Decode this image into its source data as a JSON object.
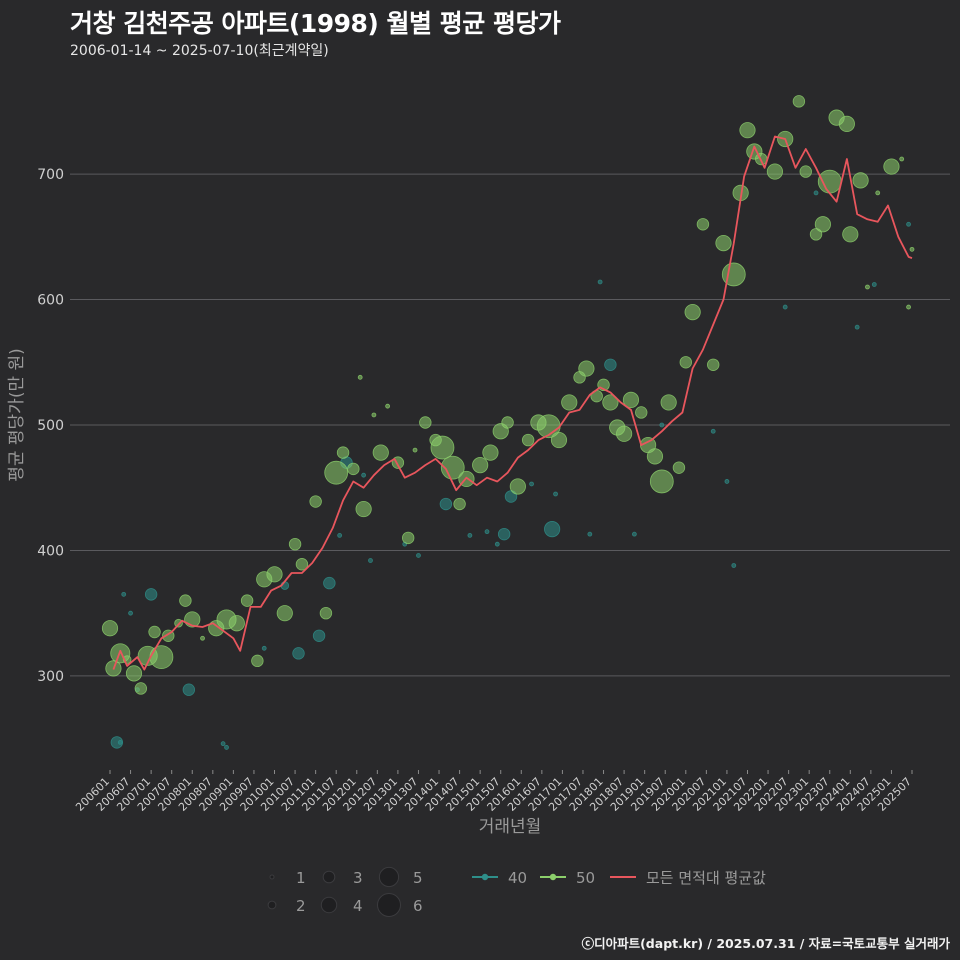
{
  "title": "거창 김천주공 아파트(1998) 월별 평균 평당가",
  "subtitle": "2006-01-14 ~ 2025-07-10(최근계약일)",
  "caption": "ⓒ디아파트(dapt.kr) / 2025.07.31 / 자료=국토교통부 실거래가",
  "colors": {
    "background": "#29292b",
    "grid": "#5a5a5e",
    "area_40": "#2e8f8a",
    "area_50": "#8ccf6b",
    "average_line": "#e8565d",
    "text": "#cfcfcf"
  },
  "chart_data": {
    "type": "scatter",
    "title": "거창 김천주공 아파트(1998) 월별 평균 평당가",
    "subtitle": "2006-01-14 ~ 2025-07-10(최근계약일)",
    "xlabel": "거래년월",
    "ylabel": "평균 평당가(만 원)",
    "ylim": [
      225,
      775
    ],
    "y_ticks": [
      300,
      400,
      500,
      600,
      700
    ],
    "x_ticks": [
      "200601",
      "200607",
      "200701",
      "200707",
      "200801",
      "200807",
      "200901",
      "200907",
      "201001",
      "201007",
      "201101",
      "201107",
      "201201",
      "201207",
      "201301",
      "201307",
      "201401",
      "201407",
      "201501",
      "201507",
      "201601",
      "201607",
      "201701",
      "201707",
      "201801",
      "201807",
      "201901",
      "201907",
      "202001",
      "202007",
      "202101",
      "202107",
      "202201",
      "202207",
      "202301",
      "202307",
      "202401",
      "202407",
      "202501",
      "202507"
    ],
    "grid": "horizontal",
    "size_legend": {
      "title": "",
      "values": [
        1,
        2,
        3,
        4,
        5,
        6
      ]
    },
    "series_legend": [
      "40",
      "50",
      "모든 면적대 평균값"
    ],
    "series": [
      {
        "name": "40",
        "points": [
          [
            "2006-03",
            247,
            3
          ],
          [
            "2006-04",
            247,
            1
          ],
          [
            "2006-05",
            365,
            1
          ],
          [
            "2006-07",
            350,
            1
          ],
          [
            "2006-09",
            289,
            1
          ],
          [
            "2007-01",
            365,
            3
          ],
          [
            "2007-12",
            289,
            3
          ],
          [
            "2008-10",
            246,
            1
          ],
          [
            "2008-11",
            243,
            1
          ],
          [
            "2009-10",
            322,
            1
          ],
          [
            "2010-08",
            318,
            3
          ],
          [
            "2010-04",
            372,
            2
          ],
          [
            "2011-02",
            332,
            3
          ],
          [
            "2011-05",
            374,
            3
          ],
          [
            "2011-08",
            412,
            1
          ],
          [
            "2011-10",
            470,
            3
          ],
          [
            "2012-05",
            392,
            1
          ],
          [
            "2012-03",
            460,
            1
          ],
          [
            "2013-03",
            405,
            1
          ],
          [
            "2013-07",
            396,
            1
          ],
          [
            "2014-03",
            437,
            3
          ],
          [
            "2014-10",
            412,
            1
          ],
          [
            "2015-03",
            415,
            1
          ],
          [
            "2015-06",
            405,
            1
          ],
          [
            "2015-08",
            413,
            3
          ],
          [
            "2015-10",
            443,
            3
          ],
          [
            "2016-04",
            453,
            1
          ],
          [
            "2016-10",
            417,
            4
          ],
          [
            "2016-11",
            445,
            1
          ],
          [
            "2017-09",
            413,
            1
          ],
          [
            "2017-12",
            614,
            1
          ],
          [
            "2018-03",
            548,
            3
          ],
          [
            "2018-10",
            413,
            1
          ],
          [
            "2019-06",
            500,
            1
          ],
          [
            "2020-09",
            495,
            1
          ],
          [
            "2021-03",
            388,
            1
          ],
          [
            "2021-01",
            455,
            1
          ],
          [
            "2022-06",
            594,
            1
          ],
          [
            "2023-03",
            685,
            1
          ],
          [
            "2024-03",
            578,
            1
          ],
          [
            "2024-08",
            612,
            1
          ],
          [
            "2025-06",
            660,
            1
          ]
        ]
      },
      {
        "name": "50",
        "points": [
          [
            "2006-01",
            338,
            4
          ],
          [
            "2006-02",
            306,
            4
          ],
          [
            "2006-04",
            318,
            5
          ],
          [
            "2006-06",
            313,
            2
          ],
          [
            "2006-08",
            302,
            4
          ],
          [
            "2006-10",
            290,
            3
          ],
          [
            "2006-12",
            316,
            5
          ],
          [
            "2007-02",
            335,
            3
          ],
          [
            "2007-04",
            315,
            6
          ],
          [
            "2007-06",
            332,
            3
          ],
          [
            "2007-09",
            342,
            2
          ],
          [
            "2007-11",
            360,
            3
          ],
          [
            "2008-01",
            345,
            4
          ],
          [
            "2008-04",
            330,
            1
          ],
          [
            "2008-08",
            338,
            4
          ],
          [
            "2008-11",
            345,
            5
          ],
          [
            "2009-02",
            342,
            4
          ],
          [
            "2009-05",
            360,
            3
          ],
          [
            "2009-08",
            312,
            3
          ],
          [
            "2009-10",
            377,
            4
          ],
          [
            "2010-01",
            381,
            4
          ],
          [
            "2010-04",
            350,
            4
          ],
          [
            "2010-07",
            405,
            3
          ],
          [
            "2010-09",
            389,
            3
          ],
          [
            "2011-01",
            439,
            3
          ],
          [
            "2011-04",
            350,
            3
          ],
          [
            "2011-07",
            462,
            6
          ],
          [
            "2011-09",
            478,
            3
          ],
          [
            "2011-12",
            465,
            3
          ],
          [
            "2012-02",
            538,
            1
          ],
          [
            "2012-03",
            433,
            4
          ],
          [
            "2012-06",
            508,
            1
          ],
          [
            "2012-08",
            478,
            4
          ],
          [
            "2012-10",
            515,
            1
          ],
          [
            "2013-01",
            470,
            3
          ],
          [
            "2013-04",
            410,
            3
          ],
          [
            "2013-06",
            480,
            1
          ],
          [
            "2013-09",
            502,
            3
          ],
          [
            "2013-12",
            488,
            3
          ],
          [
            "2014-02",
            482,
            6
          ],
          [
            "2014-05",
            466,
            6
          ],
          [
            "2014-07",
            437,
            3
          ],
          [
            "2014-09",
            457,
            4
          ],
          [
            "2015-01",
            468,
            4
          ],
          [
            "2015-04",
            478,
            4
          ],
          [
            "2015-07",
            495,
            4
          ],
          [
            "2015-09",
            502,
            3
          ],
          [
            "2015-12",
            451,
            4
          ],
          [
            "2016-03",
            488,
            3
          ],
          [
            "2016-06",
            502,
            4
          ],
          [
            "2016-09",
            499,
            6
          ],
          [
            "2016-12",
            488,
            4
          ],
          [
            "2017-03",
            518,
            4
          ],
          [
            "2017-06",
            538,
            3
          ],
          [
            "2017-08",
            545,
            4
          ],
          [
            "2017-11",
            523,
            3
          ],
          [
            "2018-01",
            532,
            3
          ],
          [
            "2018-03",
            518,
            4
          ],
          [
            "2018-05",
            498,
            4
          ],
          [
            "2018-07",
            493,
            4
          ],
          [
            "2018-09",
            520,
            4
          ],
          [
            "2018-12",
            510,
            3
          ],
          [
            "2019-02",
            484,
            4
          ],
          [
            "2019-04",
            475,
            4
          ],
          [
            "2019-06",
            455,
            6
          ],
          [
            "2019-08",
            518,
            4
          ],
          [
            "2019-11",
            466,
            3
          ],
          [
            "2020-01",
            550,
            3
          ],
          [
            "2020-03",
            590,
            4
          ],
          [
            "2020-06",
            660,
            3
          ],
          [
            "2020-09",
            548,
            3
          ],
          [
            "2020-12",
            645,
            4
          ],
          [
            "2021-03",
            620,
            6
          ],
          [
            "2021-05",
            685,
            4
          ],
          [
            "2021-07",
            735,
            4
          ],
          [
            "2021-09",
            718,
            4
          ],
          [
            "2021-11",
            712,
            3
          ],
          [
            "2022-03",
            702,
            4
          ],
          [
            "2022-06",
            728,
            4
          ],
          [
            "2022-10",
            758,
            3
          ],
          [
            "2022-12",
            702,
            3
          ],
          [
            "2023-03",
            652,
            3
          ],
          [
            "2023-05",
            660,
            4
          ],
          [
            "2023-07",
            694,
            6
          ],
          [
            "2023-09",
            745,
            4
          ],
          [
            "2023-12",
            740,
            4
          ],
          [
            "2024-01",
            652,
            4
          ],
          [
            "2024-04",
            695,
            4
          ],
          [
            "2024-06",
            610,
            1
          ],
          [
            "2024-09",
            685,
            1
          ],
          [
            "2025-01",
            706,
            4
          ],
          [
            "2025-04",
            712,
            1
          ],
          [
            "2025-06",
            594,
            1
          ],
          [
            "2025-07",
            640,
            1
          ]
        ]
      },
      {
        "name": "모든 면적대 평균값",
        "values": [
          [
            "2006-02",
            305
          ],
          [
            "2006-04",
            320
          ],
          [
            "2006-06",
            308
          ],
          [
            "2006-09",
            315
          ],
          [
            "2006-11",
            305
          ],
          [
            "2007-01",
            316
          ],
          [
            "2007-04",
            330
          ],
          [
            "2007-07",
            335
          ],
          [
            "2007-10",
            344
          ],
          [
            "2008-01",
            340
          ],
          [
            "2008-04",
            339
          ],
          [
            "2008-07",
            342
          ],
          [
            "2008-10",
            336
          ],
          [
            "2009-01",
            330
          ],
          [
            "2009-03",
            320
          ],
          [
            "2009-06",
            355
          ],
          [
            "2009-09",
            355
          ],
          [
            "2009-12",
            368
          ],
          [
            "2010-03",
            372
          ],
          [
            "2010-06",
            382
          ],
          [
            "2010-09",
            382
          ],
          [
            "2010-12",
            390
          ],
          [
            "2011-03",
            402
          ],
          [
            "2011-06",
            418
          ],
          [
            "2011-09",
            440
          ],
          [
            "2011-12",
            455
          ],
          [
            "2012-03",
            450
          ],
          [
            "2012-06",
            460
          ],
          [
            "2012-09",
            468
          ],
          [
            "2012-12",
            473
          ],
          [
            "2013-03",
            458
          ],
          [
            "2013-06",
            462
          ],
          [
            "2013-09",
            468
          ],
          [
            "2013-12",
            473
          ],
          [
            "2014-03",
            465
          ],
          [
            "2014-06",
            448
          ],
          [
            "2014-09",
            458
          ],
          [
            "2014-12",
            452
          ],
          [
            "2015-03",
            458
          ],
          [
            "2015-06",
            455
          ],
          [
            "2015-09",
            462
          ],
          [
            "2015-12",
            474
          ],
          [
            "2016-03",
            480
          ],
          [
            "2016-06",
            488
          ],
          [
            "2016-09",
            492
          ],
          [
            "2016-12",
            498
          ],
          [
            "2017-03",
            510
          ],
          [
            "2017-06",
            512
          ],
          [
            "2017-09",
            524
          ],
          [
            "2017-12",
            530
          ],
          [
            "2018-03",
            526
          ],
          [
            "2018-06",
            518
          ],
          [
            "2018-09",
            512
          ],
          [
            "2018-12",
            484
          ],
          [
            "2019-03",
            488
          ],
          [
            "2019-06",
            495
          ],
          [
            "2019-09",
            503
          ],
          [
            "2019-12",
            510
          ],
          [
            "2020-03",
            545
          ],
          [
            "2020-06",
            560
          ],
          [
            "2020-09",
            580
          ],
          [
            "2020-12",
            600
          ],
          [
            "2021-03",
            645
          ],
          [
            "2021-06",
            698
          ],
          [
            "2021-09",
            722
          ],
          [
            "2021-12",
            705
          ],
          [
            "2022-03",
            730
          ],
          [
            "2022-06",
            728
          ],
          [
            "2022-09",
            705
          ],
          [
            "2022-12",
            720
          ],
          [
            "2023-03",
            705
          ],
          [
            "2023-06",
            688
          ],
          [
            "2023-09",
            678
          ],
          [
            "2023-12",
            712
          ],
          [
            "2024-03",
            668
          ],
          [
            "2024-06",
            664
          ],
          [
            "2024-09",
            662
          ],
          [
            "2024-12",
            675
          ],
          [
            "2025-03",
            650
          ],
          [
            "2025-06",
            634
          ],
          [
            "2025-07",
            633
          ]
        ]
      }
    ]
  }
}
